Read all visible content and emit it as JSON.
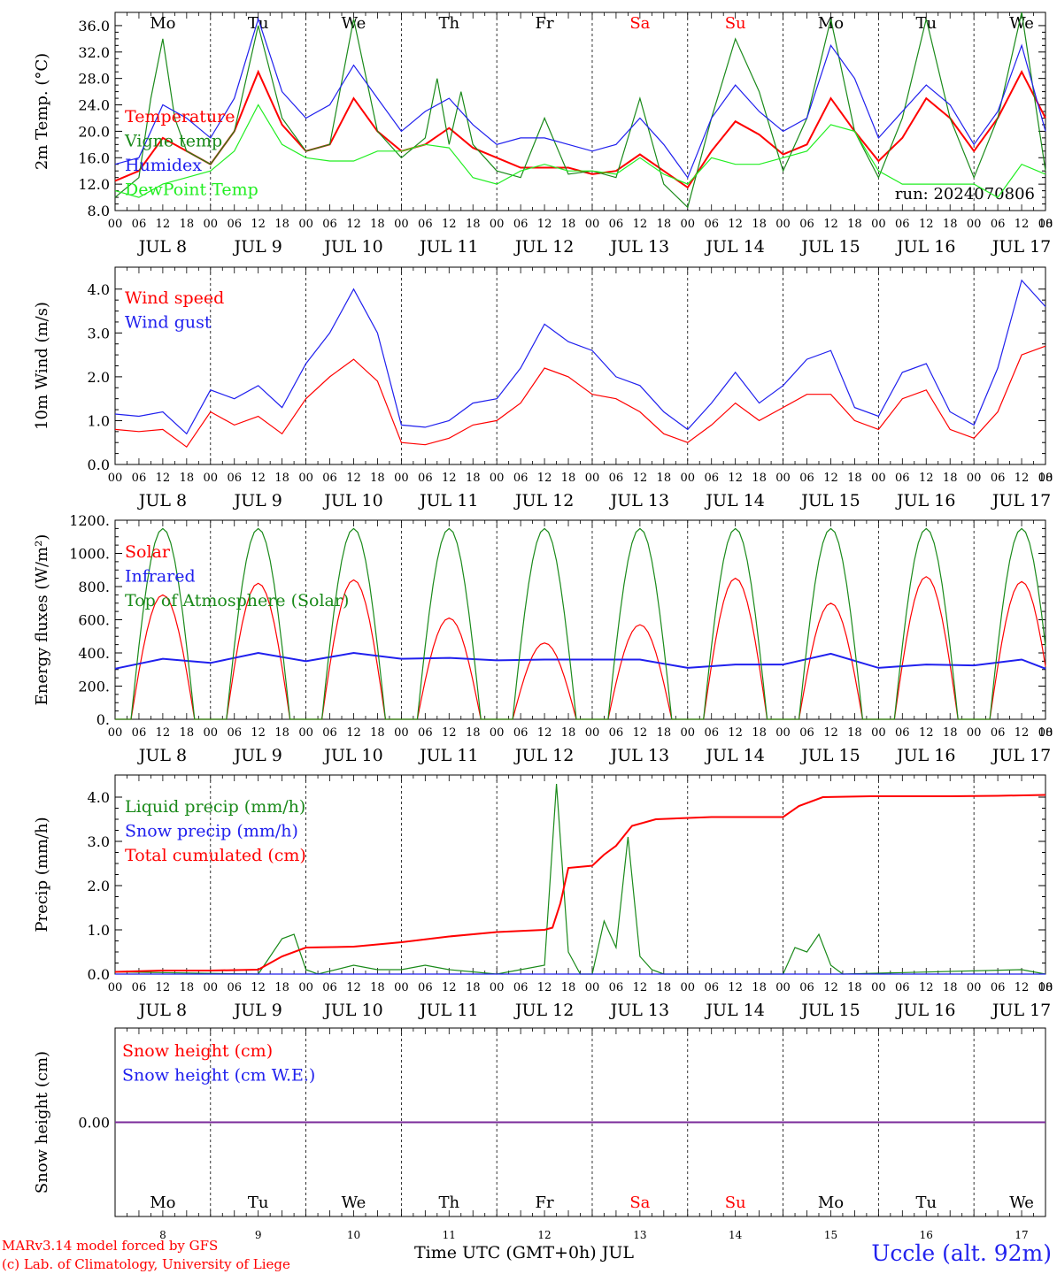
{
  "colors": {
    "red": "#ff0000",
    "green": "#1a8a1a",
    "light_green": "#22ee22",
    "blue": "#2020ee",
    "purple": "#7a2a9a"
  },
  "days": {
    "weekday_labels": [
      "Mo",
      "Tu",
      "We",
      "Th",
      "Fr",
      "Sa",
      "Su",
      "Mo",
      "Tu",
      "We"
    ],
    "weekend_indexes": [
      5,
      6
    ],
    "date_labels": [
      "JUL  8",
      "JUL  9",
      "JUL 10",
      "JUL 11",
      "JUL 12",
      "JUL 13",
      "JUL 14",
      "JUL 15",
      "JUL 16",
      "JUL 17"
    ],
    "day_numbers": [
      "8",
      "9",
      "10",
      "11",
      "12",
      "13",
      "14",
      "15",
      "16",
      "17"
    ],
    "hour_ticks": [
      "00",
      "06",
      "12",
      "18"
    ]
  },
  "footer": {
    "credit_line1": "MARv3.14 model forced by GFS",
    "credit_line2": "(c) Lab. of Climatology, University of Liege",
    "x_title": "Time UTC (GMT+0h) JUL",
    "station": "Uccle (alt. 92m)"
  },
  "chart_data": [
    {
      "type": "line",
      "ylabel": "2m Temp. (°C)",
      "ylim": [
        8,
        38
      ],
      "yticks": [
        "8.0",
        "12.0",
        "16.0",
        "20.0",
        "24.0",
        "28.0",
        "32.0",
        "36.0"
      ],
      "annotation": "run: 2024070806",
      "legend_placement": "left",
      "x_unit": "hours since JUL 8 00 UTC",
      "series": [
        {
          "name": "Temperature",
          "color": "#ff0000",
          "x": [
            0,
            6,
            12,
            18,
            24,
            30,
            36,
            42,
            48,
            54,
            60,
            66,
            72,
            78,
            84,
            90,
            96,
            102,
            108,
            114,
            120,
            126,
            132,
            138,
            144,
            150,
            156,
            162,
            168,
            174,
            180,
            186,
            192,
            198,
            204,
            210,
            216,
            222,
            228,
            234
          ],
          "values": [
            12.5,
            14,
            19,
            17,
            15,
            20,
            29,
            21,
            17,
            18,
            25,
            20,
            17,
            18,
            20.5,
            17.5,
            16,
            14.5,
            14.5,
            14.5,
            13.5,
            14,
            16.5,
            14,
            11.5,
            17,
            21.5,
            19.5,
            16.5,
            18,
            25,
            20,
            15.5,
            19,
            25,
            22,
            17,
            22,
            29,
            22
          ]
        },
        {
          "name": "Vigne temp",
          "color": "#1a8a1a",
          "x": [
            0,
            6,
            9,
            12,
            15,
            18,
            24,
            30,
            36,
            42,
            48,
            54,
            60,
            66,
            72,
            78,
            81,
            84,
            87,
            90,
            96,
            102,
            108,
            114,
            120,
            126,
            132,
            138,
            144,
            150,
            156,
            162,
            168,
            174,
            180,
            186,
            192,
            198,
            204,
            210,
            216,
            222,
            228,
            234
          ],
          "values": [
            10,
            13,
            25,
            34,
            22,
            17,
            15,
            20,
            36,
            22,
            17,
            18,
            37,
            20,
            16,
            19,
            28,
            18,
            26,
            18,
            14,
            13,
            22,
            13.5,
            14,
            13,
            25,
            12,
            8.5,
            22,
            34,
            26,
            14,
            22,
            37,
            20,
            13,
            22,
            37,
            22,
            13,
            22,
            38,
            14
          ]
        },
        {
          "name": "Humidex",
          "color": "#2020ee",
          "x": [
            0,
            6,
            12,
            18,
            24,
            30,
            36,
            42,
            48,
            54,
            60,
            66,
            72,
            78,
            84,
            90,
            96,
            102,
            108,
            114,
            120,
            126,
            132,
            138,
            144,
            150,
            156,
            162,
            168,
            174,
            180,
            186,
            192,
            198,
            204,
            210,
            216,
            222,
            228,
            234
          ],
          "values": [
            15,
            16,
            24,
            22,
            19,
            25,
            37,
            26,
            22,
            24,
            30,
            25,
            20,
            23,
            25,
            21,
            18,
            19,
            19,
            18,
            17,
            18,
            22,
            18,
            13,
            22,
            27,
            23,
            20,
            22,
            33,
            28,
            19,
            23,
            27,
            24,
            18,
            23,
            33,
            20
          ]
        },
        {
          "name": "DewPoint Temp",
          "color": "#22ee22",
          "x": [
            0,
            6,
            12,
            18,
            24,
            30,
            36,
            42,
            48,
            54,
            60,
            66,
            72,
            78,
            84,
            90,
            96,
            102,
            108,
            114,
            120,
            126,
            132,
            138,
            144,
            150,
            156,
            162,
            168,
            174,
            180,
            186,
            192,
            198,
            204,
            210,
            216,
            222,
            228,
            234
          ],
          "values": [
            11,
            10,
            12,
            13,
            14,
            17,
            24,
            18,
            16,
            15.5,
            15.5,
            17,
            17,
            18,
            17.5,
            13,
            12,
            14,
            15,
            14,
            14,
            13.5,
            16,
            13.5,
            12,
            16,
            15,
            15,
            16,
            17,
            21,
            20,
            14,
            12,
            12,
            12,
            12,
            10,
            15,
            13.5
          ]
        }
      ]
    },
    {
      "type": "line",
      "ylabel": "10m Wind (m/s)",
      "ylim": [
        0,
        4.5
      ],
      "yticks": [
        "0.0",
        "1.0",
        "2.0",
        "3.0",
        "4.0"
      ],
      "legend_placement": "left",
      "x_unit": "hours since JUL 8 00 UTC",
      "series": [
        {
          "name": "Wind speed",
          "color": "#ff0000",
          "x": [
            0,
            6,
            12,
            18,
            24,
            30,
            36,
            42,
            48,
            54,
            60,
            66,
            72,
            78,
            84,
            90,
            96,
            102,
            108,
            114,
            120,
            126,
            132,
            138,
            144,
            150,
            156,
            162,
            168,
            174,
            180,
            186,
            192,
            198,
            204,
            210,
            216,
            222,
            228,
            234
          ],
          "values": [
            0.8,
            0.75,
            0.8,
            0.4,
            1.2,
            0.9,
            1.1,
            0.7,
            1.5,
            2.0,
            2.4,
            1.9,
            0.5,
            0.45,
            0.6,
            0.9,
            1.0,
            1.4,
            2.2,
            2.0,
            1.6,
            1.5,
            1.2,
            0.7,
            0.5,
            0.9,
            1.4,
            1.0,
            1.3,
            1.6,
            1.6,
            1.0,
            0.8,
            1.5,
            1.7,
            0.8,
            0.6,
            1.2,
            2.5,
            2.7
          ]
        },
        {
          "name": "Wind gust",
          "color": "#2020ee",
          "x": [
            0,
            6,
            12,
            18,
            24,
            30,
            36,
            42,
            48,
            54,
            60,
            66,
            72,
            78,
            84,
            90,
            96,
            102,
            108,
            114,
            120,
            126,
            132,
            138,
            144,
            150,
            156,
            162,
            168,
            174,
            180,
            186,
            192,
            198,
            204,
            210,
            216,
            222,
            228,
            234
          ],
          "values": [
            1.15,
            1.1,
            1.2,
            0.7,
            1.7,
            1.5,
            1.8,
            1.3,
            2.3,
            3.0,
            4.0,
            3.0,
            0.9,
            0.85,
            1.0,
            1.4,
            1.5,
            2.2,
            3.2,
            2.8,
            2.6,
            2.0,
            1.8,
            1.2,
            0.8,
            1.4,
            2.1,
            1.4,
            1.8,
            2.4,
            2.6,
            1.3,
            1.1,
            2.1,
            2.3,
            1.2,
            0.9,
            2.2,
            4.2,
            3.6
          ]
        }
      ]
    },
    {
      "type": "line",
      "ylabel": "Energy fluxes (W/m²)",
      "ylim": [
        0,
        1200
      ],
      "yticks": [
        "0.",
        "200.",
        "400.",
        "600.",
        "800.",
        "1000.",
        "1200."
      ],
      "legend_placement": "left",
      "x_unit": "hours since JUL 8 00 UTC",
      "series": [
        {
          "name": "Solar",
          "color": "#ff0000",
          "peak_per_day": [
            750,
            820,
            840,
            610,
            460,
            570,
            850,
            700,
            860,
            830
          ]
        },
        {
          "name": "Infrared",
          "color": "#2020ee",
          "x": [
            0,
            12,
            24,
            36,
            48,
            60,
            72,
            84,
            96,
            108,
            120,
            132,
            144,
            156,
            168,
            180,
            192,
            204,
            216,
            228,
            234
          ],
          "values": [
            305,
            365,
            340,
            400,
            350,
            400,
            365,
            370,
            355,
            360,
            360,
            360,
            310,
            330,
            330,
            395,
            310,
            330,
            325,
            360,
            305
          ]
        },
        {
          "name": "Top of Atmosphere (Solar)",
          "color": "#1a8a1a",
          "peak_per_day": [
            1150,
            1150,
            1150,
            1150,
            1150,
            1150,
            1150,
            1150,
            1150,
            1150
          ]
        }
      ]
    },
    {
      "type": "line",
      "ylabel": "Precip (mm/h)",
      "ylim": [
        0,
        4.5
      ],
      "yticks": [
        "0.0",
        "1.0",
        "2.0",
        "3.0",
        "4.0"
      ],
      "legend_placement": "left",
      "x_unit": "hours since JUL 8 00 UTC",
      "series": [
        {
          "name": "Liquid precip (mm/h)",
          "color": "#1a8a1a",
          "x": [
            0,
            36,
            39,
            42,
            45,
            48,
            51,
            60,
            66,
            72,
            78,
            84,
            90,
            96,
            108,
            111,
            114,
            117,
            120,
            123,
            126,
            129,
            132,
            135,
            138,
            144,
            168,
            171,
            174,
            177,
            180,
            183,
            228,
            234
          ],
          "values": [
            0.05,
            0,
            0.4,
            0.8,
            0.9,
            0.1,
            0,
            0.2,
            0.1,
            0.1,
            0.2,
            0.1,
            0.05,
            0,
            0.2,
            4.3,
            0.5,
            0,
            0,
            1.2,
            0.6,
            3.1,
            0.4,
            0.1,
            0,
            0,
            0,
            0.6,
            0.5,
            0.9,
            0.2,
            0,
            0.1,
            0
          ]
        },
        {
          "name": "Snow precip (mm/h)",
          "color": "#2020ee",
          "x": [
            0,
            234
          ],
          "values": [
            0,
            0
          ]
        },
        {
          "name": "Total cumulated (cm)",
          "color": "#ff0000",
          "x": [
            0,
            12,
            24,
            36,
            42,
            48,
            60,
            72,
            84,
            96,
            108,
            110,
            112,
            114,
            120,
            123,
            126,
            130,
            136,
            150,
            168,
            172,
            178,
            190,
            210,
            222,
            234
          ],
          "values": [
            0.05,
            0.08,
            0.08,
            0.1,
            0.4,
            0.6,
            0.62,
            0.72,
            0.85,
            0.95,
            1.0,
            1.05,
            1.6,
            2.4,
            2.45,
            2.7,
            2.9,
            3.35,
            3.5,
            3.55,
            3.55,
            3.8,
            4.0,
            4.02,
            4.02,
            4.03,
            4.05
          ]
        }
      ]
    },
    {
      "type": "line",
      "ylabel": "Snow height (cm)",
      "yticks": [
        "0.00"
      ],
      "legend_placement": "left",
      "x_unit": "hours since JUL 8 00 UTC",
      "series": [
        {
          "name": "Snow height (cm)",
          "color": "#ff0000",
          "x": [
            0,
            234
          ],
          "values": [
            0,
            0
          ]
        },
        {
          "name": "Snow height (cm W.E.)",
          "color": "#2020ee",
          "x": [
            0,
            234
          ],
          "values": [
            0,
            0
          ]
        }
      ]
    }
  ]
}
